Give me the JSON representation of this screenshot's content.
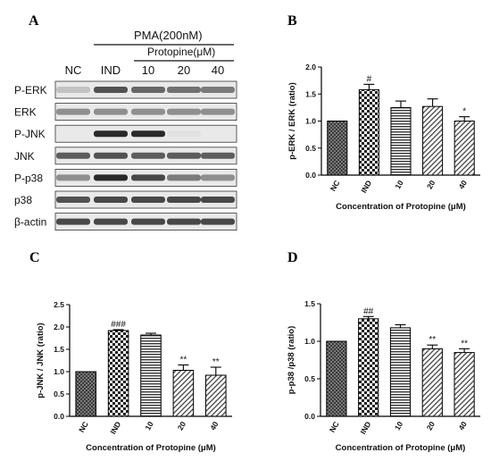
{
  "panel_letters": [
    "A",
    "B",
    "C",
    "D"
  ],
  "blot": {
    "treatment_label": "PMA(200nM)",
    "sub_treatment_label": "Protopine(μM)",
    "lanes": [
      "NC",
      "IND",
      "10",
      "20",
      "40"
    ],
    "rows": [
      "P-ERK",
      "ERK",
      "P-JNK",
      "JNK",
      "P-p38",
      "p38",
      "β-actin"
    ],
    "band_intensity": [
      [
        0.2,
        0.75,
        0.65,
        0.6,
        0.55
      ],
      [
        0.45,
        0.45,
        0.45,
        0.45,
        0.45
      ],
      [
        0.0,
        0.95,
        0.95,
        0.05,
        0.0
      ],
      [
        0.7,
        0.75,
        0.7,
        0.7,
        0.7
      ],
      [
        0.45,
        0.95,
        0.8,
        0.55,
        0.45
      ],
      [
        0.75,
        0.8,
        0.8,
        0.8,
        0.8
      ],
      [
        0.8,
        0.8,
        0.8,
        0.8,
        0.8
      ]
    ]
  },
  "chart_data": [
    {
      "panel": "B",
      "type": "bar",
      "categories": [
        "NC",
        "IND",
        "10",
        "20",
        "40"
      ],
      "values": [
        1.0,
        1.58,
        1.25,
        1.27,
        1.0
      ],
      "errors": [
        0.0,
        0.1,
        0.12,
        0.14,
        0.08
      ],
      "marks": [
        "",
        "#",
        "",
        "",
        "*"
      ],
      "patterns": [
        "dense-check",
        "check",
        "hlines",
        "diag",
        "diag"
      ],
      "ylabel": "p-ERK / ERK (ratio)",
      "xlabel": "Concentration of Protopine (μM)",
      "ylim": [
        0,
        2.0
      ],
      "yticks": [
        "0.0",
        "0.5",
        "1.0",
        "1.5",
        "2.0"
      ]
    },
    {
      "panel": "C",
      "type": "bar",
      "categories": [
        "NC",
        "IND",
        "10",
        "20",
        "40"
      ],
      "values": [
        1.0,
        1.92,
        1.82,
        1.03,
        0.92
      ],
      "errors": [
        0.0,
        0.02,
        0.04,
        0.12,
        0.18
      ],
      "marks": [
        "",
        "###",
        "",
        "**",
        "**"
      ],
      "patterns": [
        "dense-check",
        "check",
        "hlines",
        "diag",
        "diag"
      ],
      "ylabel": "p-JNK / JNK (ratio)",
      "xlabel": "Concentration of Protopine (μM)",
      "ylim": [
        0,
        2.5
      ],
      "yticks": [
        "0.0",
        "0.5",
        "1.0",
        "1.5",
        "2.0",
        "2.5"
      ]
    },
    {
      "panel": "D",
      "type": "bar",
      "categories": [
        "NC",
        "IND",
        "10",
        "20",
        "40"
      ],
      "values": [
        1.0,
        1.3,
        1.18,
        0.9,
        0.85
      ],
      "errors": [
        0.0,
        0.03,
        0.04,
        0.05,
        0.05
      ],
      "marks": [
        "",
        "##",
        "",
        "**",
        "**"
      ],
      "patterns": [
        "dense-check",
        "check",
        "hlines",
        "diag",
        "diag"
      ],
      "ylabel": "p-p38 /p38 (ratio)",
      "xlabel": "Concentration of Protopine (μM)",
      "ylim": [
        0,
        1.5
      ],
      "yticks": [
        "0.0",
        "0.5",
        "1.0",
        "1.5"
      ]
    }
  ]
}
